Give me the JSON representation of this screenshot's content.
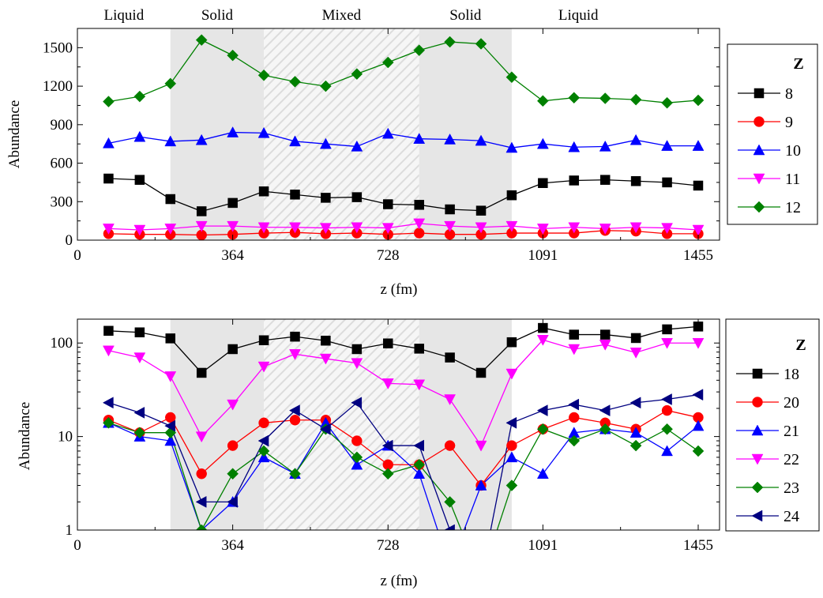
{
  "chart_data": [
    {
      "type": "line",
      "ylabel": "Abundance",
      "xlabel": "z (fm)",
      "xlim": [
        0,
        1505
      ],
      "ylim": [
        0,
        1650
      ],
      "yscale": "linear",
      "xticks": [
        0,
        364,
        728,
        1091,
        1455
      ],
      "xtick_labels": [
        "0",
        "364",
        "728",
        "1091",
        "1455"
      ],
      "yticks": [
        0,
        300,
        600,
        900,
        1200,
        1500
      ],
      "ytick_labels": [
        "0",
        "300",
        "600",
        "900",
        "1200",
        "1500"
      ],
      "grid": false,
      "legend_position": "right",
      "legend_title": "Z",
      "regions": [
        {
          "label": "Liquid",
          "x0": 0,
          "x1": 218,
          "fill": "none"
        },
        {
          "label": "Solid",
          "x0": 218,
          "x1": 437,
          "fill": "gray"
        },
        {
          "label": "Mixed",
          "x0": 437,
          "x1": 801,
          "fill": "hatch"
        },
        {
          "label": "Solid",
          "x0": 801,
          "x1": 1018,
          "fill": "gray"
        },
        {
          "label": "Liquid",
          "x0": 1018,
          "x1": 1505,
          "fill": "none"
        }
      ],
      "x": [
        73,
        146,
        218,
        291,
        364,
        437,
        510,
        582,
        655,
        728,
        801,
        873,
        946,
        1018,
        1091,
        1164,
        1237,
        1309,
        1382,
        1455
      ],
      "series": [
        {
          "name": "8",
          "color": "#000000",
          "marker": "square",
          "values": [
            480,
            470,
            320,
            225,
            290,
            380,
            355,
            330,
            335,
            280,
            275,
            240,
            230,
            350,
            445,
            465,
            470,
            460,
            450,
            425
          ]
        },
        {
          "name": "9",
          "color": "#ff0000",
          "marker": "circle",
          "values": [
            50,
            45,
            45,
            40,
            45,
            55,
            60,
            50,
            55,
            45,
            55,
            45,
            45,
            55,
            55,
            55,
            75,
            70,
            50,
            50
          ]
        },
        {
          "name": "10",
          "color": "#0000ff",
          "marker": "triangle-up",
          "values": [
            755,
            805,
            770,
            780,
            840,
            835,
            770,
            750,
            730,
            830,
            790,
            785,
            775,
            720,
            750,
            725,
            730,
            780,
            735,
            735
          ]
        },
        {
          "name": "11",
          "color": "#ff00ff",
          "marker": "triangle-down",
          "values": [
            90,
            80,
            90,
            110,
            110,
            100,
            100,
            95,
            100,
            95,
            130,
            110,
            100,
            110,
            90,
            100,
            90,
            100,
            95,
            80
          ]
        },
        {
          "name": "12",
          "color": "#008000",
          "marker": "diamond",
          "values": [
            1080,
            1120,
            1220,
            1560,
            1440,
            1285,
            1235,
            1200,
            1295,
            1385,
            1480,
            1545,
            1530,
            1270,
            1085,
            1110,
            1105,
            1095,
            1070,
            1090
          ]
        }
      ]
    },
    {
      "type": "line",
      "ylabel": "Abundance",
      "xlabel": "z (fm)",
      "xlim": [
        0,
        1505
      ],
      "ylim": [
        1,
        180
      ],
      "yscale": "log",
      "xticks": [
        0,
        364,
        728,
        1091,
        1455
      ],
      "xtick_labels": [
        "0",
        "364",
        "728",
        "1091",
        "1455"
      ],
      "yticks": [
        1,
        10,
        100
      ],
      "ytick_labels": [
        "1",
        "10",
        "100"
      ],
      "grid": false,
      "legend_position": "right",
      "legend_title": "Z",
      "x": [
        73,
        146,
        218,
        291,
        364,
        437,
        510,
        582,
        655,
        728,
        801,
        873,
        946,
        1018,
        1091,
        1164,
        1237,
        1309,
        1382,
        1455
      ],
      "series": [
        {
          "name": "18",
          "color": "#000000",
          "marker": "square",
          "values": [
            135,
            130,
            112,
            48,
            86,
            107,
            117,
            106,
            86,
            99,
            87,
            70,
            48,
            102,
            145,
            123,
            123,
            113,
            140,
            150
          ]
        },
        {
          "name": "20",
          "color": "#ff0000",
          "marker": "circle",
          "values": [
            15,
            11,
            16,
            4,
            8,
            14,
            15,
            15,
            9,
            5,
            5,
            8,
            3,
            8,
            12,
            16,
            14,
            12,
            19,
            16
          ]
        },
        {
          "name": "21",
          "color": "#0000ff",
          "marker": "triangle-up",
          "values": [
            14,
            10,
            9,
            1,
            2,
            6,
            4,
            14,
            5,
            8,
            4,
            0.4,
            3,
            6,
            4,
            11,
            12,
            11,
            7,
            13
          ]
        },
        {
          "name": "22",
          "color": "#ff00ff",
          "marker": "triangle-down",
          "values": [
            83,
            70,
            44,
            10,
            22,
            56,
            76,
            68,
            61,
            37,
            36,
            25,
            8,
            47,
            108,
            86,
            96,
            79,
            100,
            100
          ]
        },
        {
          "name": "23",
          "color": "#008000",
          "marker": "diamond",
          "values": [
            14,
            11,
            11,
            1,
            4,
            7,
            4,
            12,
            6,
            4,
            5,
            2,
            0.3,
            3,
            12,
            9,
            12,
            8,
            12,
            7
          ]
        },
        {
          "name": "24",
          "color": "#000080",
          "marker": "triangle-left",
          "values": [
            23,
            18,
            13,
            2,
            2,
            9,
            19,
            12,
            23,
            8,
            8,
            1,
            0.3,
            14,
            19,
            22,
            19,
            23,
            25,
            28
          ]
        }
      ]
    }
  ]
}
